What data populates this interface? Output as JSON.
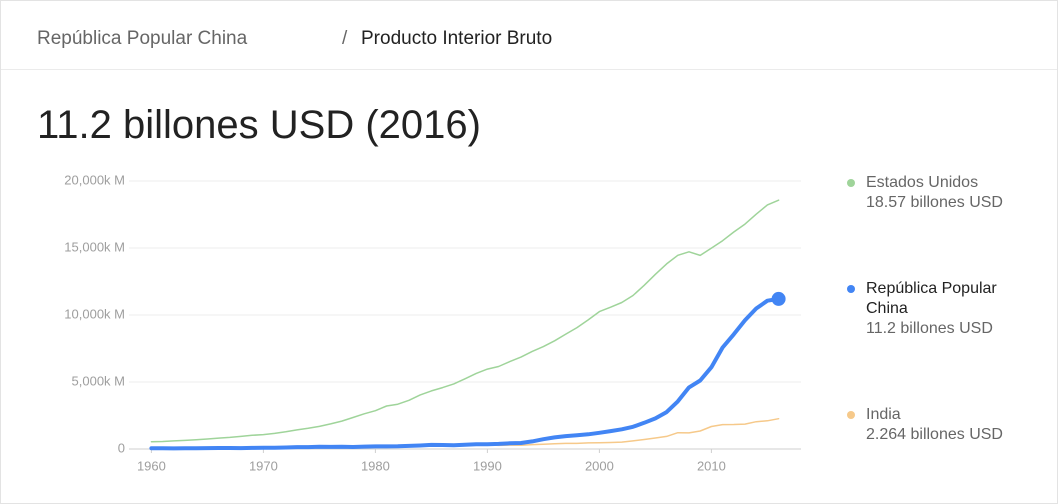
{
  "header": {
    "country": "República Popular China",
    "separator": "/",
    "indicator": "Producto Interior Bruto"
  },
  "chart_data": {
    "type": "line",
    "title": "11.2 billones USD (2016)",
    "x": [
      1960,
      1961,
      1962,
      1963,
      1964,
      1965,
      1966,
      1967,
      1968,
      1969,
      1970,
      1971,
      1972,
      1973,
      1974,
      1975,
      1976,
      1977,
      1978,
      1979,
      1980,
      1981,
      1982,
      1983,
      1984,
      1985,
      1986,
      1987,
      1988,
      1989,
      1990,
      1991,
      1992,
      1993,
      1994,
      1995,
      1996,
      1997,
      1998,
      1999,
      2000,
      2001,
      2002,
      2003,
      2004,
      2005,
      2006,
      2007,
      2008,
      2009,
      2010,
      2011,
      2012,
      2013,
      2014,
      2015,
      2016
    ],
    "series": [
      {
        "name": "Estados Unidos",
        "legend_value": "18.57 billones USD",
        "color": "#9fd49a",
        "width": 1.5,
        "values": [
          543,
          563,
          605,
          639,
          686,
          744,
          815,
          862,
          943,
          1019,
          1073,
          1165,
          1280,
          1425,
          1545,
          1684,
          1873,
          2082,
          2352,
          2627,
          2857,
          3207,
          3343,
          3634,
          4037,
          4339,
          4580,
          4855,
          5236,
          5642,
          5963,
          6158,
          6520,
          6859,
          7287,
          7640,
          8073,
          8577,
          9062,
          9631,
          10252,
          10582,
          10936,
          11458,
          12214,
          13037,
          13815,
          14452,
          14713,
          14449,
          14992,
          15543,
          16197,
          16785,
          17522,
          18219,
          18570
        ]
      },
      {
        "name": "República Popular China",
        "legend_value": "11.2 billones USD",
        "color": "#4285f4",
        "width": 4,
        "end_marker": true,
        "values": [
          59,
          50,
          47,
          51,
          59,
          70,
          76,
          72,
          70,
          79,
          92,
          100,
          114,
          139,
          144,
          163,
          154,
          175,
          150,
          178,
          191,
          196,
          205,
          231,
          260,
          309,
          301,
          273,
          312,
          348,
          361,
          383,
          427,
          445,
          564,
          734,
          864,
          962,
          1029,
          1094,
          1211,
          1339,
          1471,
          1660,
          1955,
          2286,
          2752,
          3552,
          4598,
          5110,
          6101,
          7573,
          8561,
          9607,
          10482,
          11065,
          11200
        ]
      },
      {
        "name": "India",
        "legend_value": "2.264 billones USD",
        "color": "#f6c98a",
        "width": 1.5,
        "values": [
          37,
          39,
          42,
          49,
          56,
          59,
          46,
          50,
          53,
          58,
          62,
          67,
          71,
          85,
          99,
          98,
          102,
          121,
          137,
          153,
          186,
          193,
          201,
          219,
          212,
          232,
          248,
          279,
          296,
          296,
          321,
          270,
          288,
          279,
          327,
          360,
          392,
          415,
          421,
          458,
          468,
          485,
          515,
          607,
          709,
          820,
          940,
          1216,
          1199,
          1342,
          1676,
          1823,
          1828,
          1857,
          2039,
          2102,
          2264
        ]
      }
    ],
    "xlim": [
      1958,
      2018
    ],
    "xticks": [
      1960,
      1970,
      1980,
      1990,
      2000,
      2010
    ],
    "ylim": [
      0,
      20000
    ],
    "yticks": [
      0,
      {
        "value": 5000,
        "label": "5,000k M"
      },
      {
        "value": 10000,
        "label": "10,000k M"
      },
      {
        "value": 15000,
        "label": "15,000k M"
      },
      {
        "value": 20000,
        "label": "20,000k M"
      }
    ],
    "grid": true
  }
}
